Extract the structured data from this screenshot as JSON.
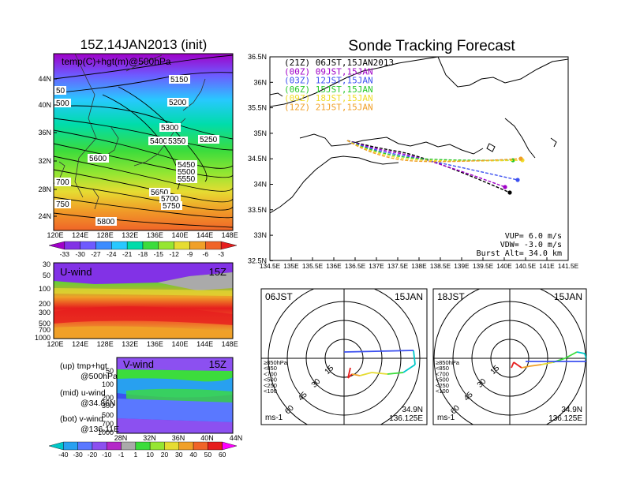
{
  "left_title": "15Z,14JAN2013 (init)",
  "map_label": "temp(C)+hgt(m)@500hPa",
  "map_lat_ticks": [
    "44N",
    "40N",
    "36N",
    "32N",
    "28N",
    "24N"
  ],
  "lon_ticks": [
    "120E",
    "124E",
    "128E",
    "132E",
    "136E",
    "140E",
    "144E",
    "148E"
  ],
  "height_contour_labels": [
    "50",
    "500",
    "700",
    "750",
    "5150",
    "5200",
    "5250",
    "5300",
    "5400",
    "5350",
    "5450",
    "5500",
    "5550",
    "5600",
    "5650",
    "5700",
    "5750",
    "5800"
  ],
  "temp_colorbar": {
    "labels": [
      "-33",
      "-30",
      "-27",
      "-24",
      "-21",
      "-18",
      "-15",
      "-12",
      "-9",
      "-6",
      "-3"
    ],
    "colors": [
      "#a000c8",
      "#8232e6",
      "#6e5aff",
      "#3c8cff",
      "#28c8ff",
      "#00dcaa",
      "#3cdc3c",
      "#96e632",
      "#e6dc32",
      "#f0a028",
      "#f06428",
      "#e61e1e"
    ]
  },
  "uwind": {
    "label": "U-wind",
    "time": "15Z",
    "p_ticks": [
      "30",
      "50",
      "100",
      "200",
      "300",
      "500",
      "700",
      "1000"
    ],
    "lon_ticks": [
      "120E",
      "124E",
      "128E",
      "132E",
      "136E",
      "140E",
      "144E",
      "148E"
    ]
  },
  "vwind": {
    "label": "V-wind",
    "time": "15Z",
    "p_ticks": [
      "50",
      "100",
      "200",
      "300",
      "500",
      "700",
      "1000"
    ],
    "lat_ticks": [
      "28N",
      "32N",
      "36N",
      "40N",
      "44N"
    ]
  },
  "legend_notes": {
    "up": "(up) tmp+hgt",
    "up2": "@500hPa",
    "mid": "(mid) u-wind",
    "mid2": "@34.86N",
    "bot": "(bot) v-wind",
    "bot2": "@136.11E"
  },
  "wind_colorbar": {
    "labels": [
      "-40",
      "-30",
      "-20",
      "-10",
      "-1",
      "1",
      "10",
      "20",
      "30",
      "40",
      "50",
      "60"
    ],
    "colors": [
      "#00c8c8",
      "#28a0f0",
      "#5a78ff",
      "#8c50f0",
      "#b428c8",
      "#aaaaaa",
      "#3cdc3c",
      "#96e632",
      "#e6dc32",
      "#f0a028",
      "#f06428",
      "#e61e1e",
      "#ff00ff"
    ]
  },
  "track": {
    "title": "Sonde Tracking Forecast",
    "lat_ticks": [
      "36.5N",
      "36N",
      "35.5N",
      "35N",
      "34.5N",
      "34N",
      "33.5N",
      "33N",
      "32.5N"
    ],
    "lon_ticks": [
      "134.5E",
      "135E",
      "135.5E",
      "136E",
      "136.5E",
      "137E",
      "137.5E",
      "138E",
      "138.5E",
      "139E",
      "139.5E",
      "140E",
      "140.5E",
      "141E",
      "141.5E"
    ],
    "launches": [
      {
        "label": "(21Z)  06JST,15JAN2013",
        "color": "#000000"
      },
      {
        "label": "(00Z)  09JST,15JAN",
        "color": "#a000c8"
      },
      {
        "label": "(03Z)  12JST,15JAN",
        "color": "#3c50f0"
      },
      {
        "label": "(06Z)  15JST,15JAN",
        "color": "#28c828"
      },
      {
        "label": "(09Z)  18JST,15JAN",
        "color": "#f0dc28"
      },
      {
        "label": "(12Z)  21JST,15JAN",
        "color": "#f0a028"
      }
    ],
    "params": [
      "VUP=  6.0  m/s",
      "VDW= -3.0  m/s",
      "Burst Alt=  34.0  km"
    ]
  },
  "hodo_left": {
    "time": "06JST",
    "date": "15JAN",
    "rings": [
      "15",
      "30",
      "45",
      "60"
    ],
    "levels": [
      "≥850hPa",
      "<850",
      "<700",
      "<500",
      "<250",
      "<100"
    ],
    "level_colors": [
      "#e61e1e",
      "#f0a028",
      "#e6dc32",
      "#3cdc3c",
      "#00c8c8",
      "#3c50f0"
    ],
    "unit": "ms-1",
    "loc1": "34.9N",
    "loc2": "136.125E"
  },
  "hodo_right": {
    "time": "18JST",
    "date": "15JAN",
    "rings": [
      "15",
      "30",
      "45",
      "60"
    ],
    "levels": [
      "≥850hPa",
      "<850",
      "<700",
      "<500",
      "<250",
      "<100"
    ],
    "level_colors": [
      "#e61e1e",
      "#f0a028",
      "#e6dc32",
      "#3cdc3c",
      "#00c8c8",
      "#3c50f0"
    ],
    "unit": "ms-1",
    "loc1": "34.9N",
    "loc2": "136.125E"
  }
}
